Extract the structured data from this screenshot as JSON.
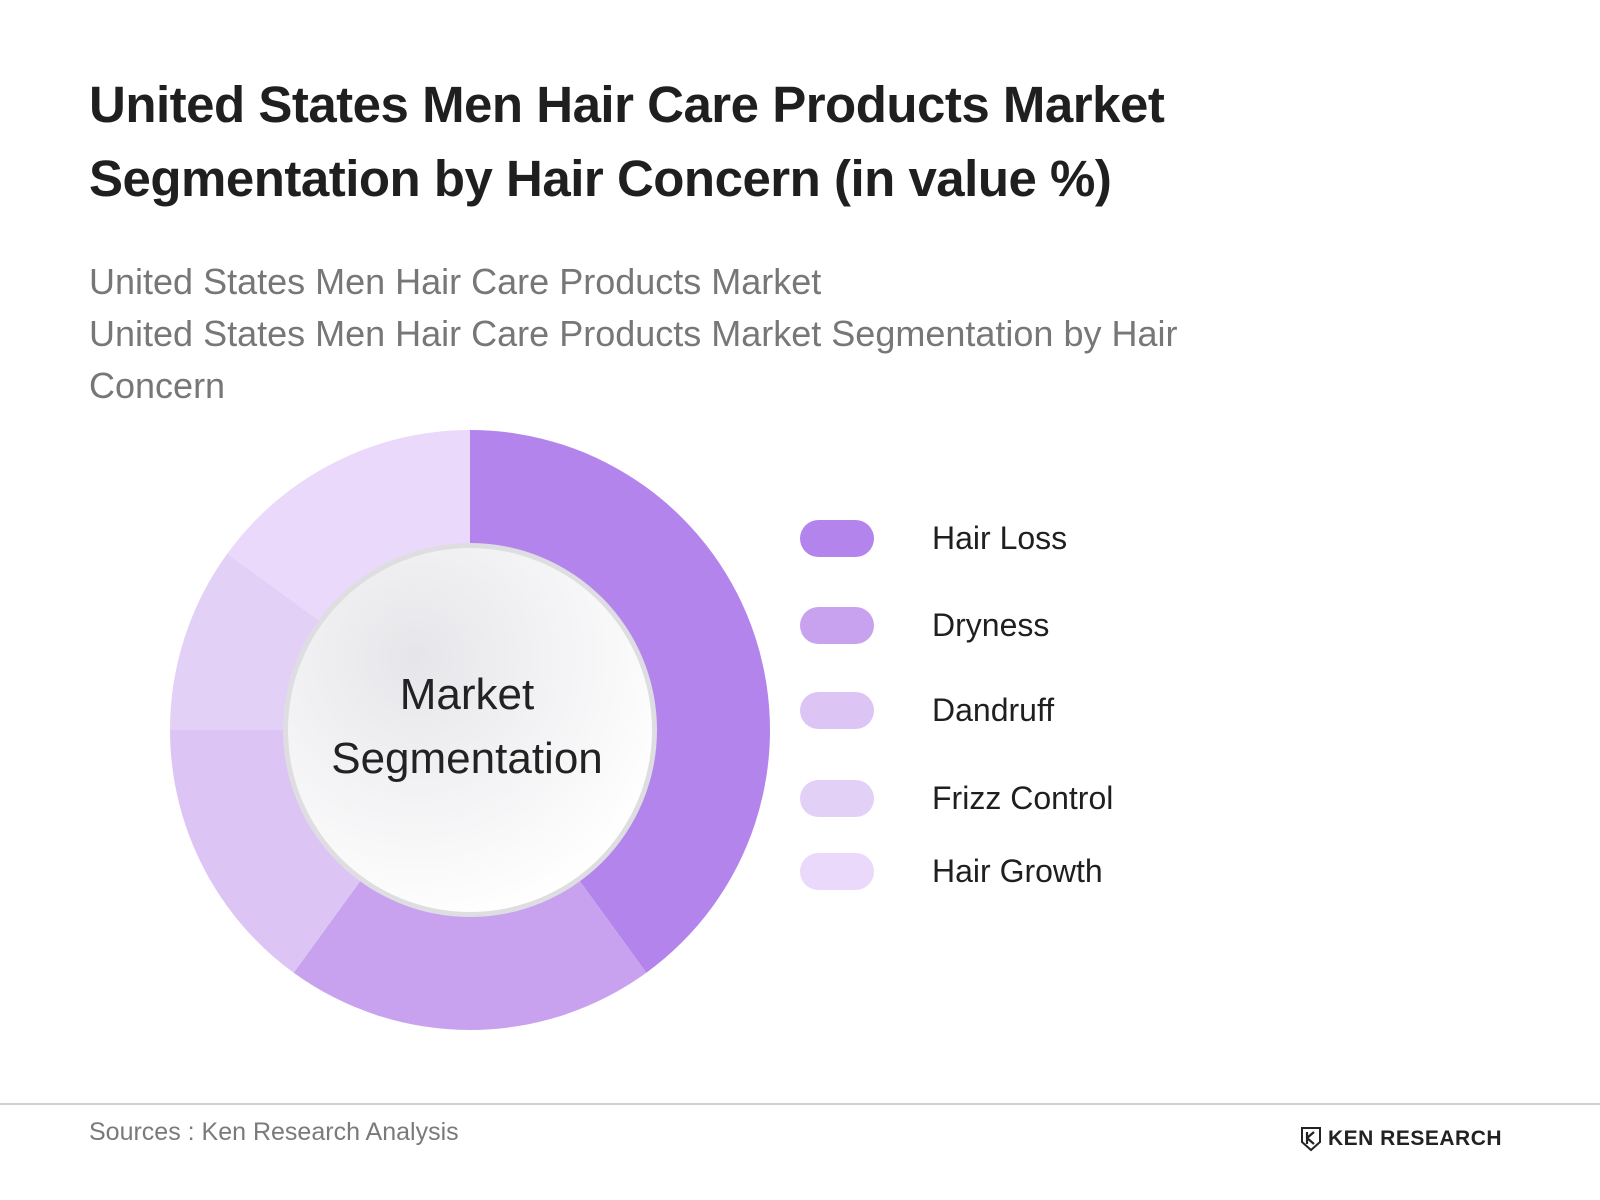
{
  "title": "United States Men Hair Care Products Market Segmentation by Hair Concern (in value %)",
  "subtitle_lines": [
    "United States Men Hair Care Products Market",
    "United States Men Hair Care Products Market Segmentation by Hair Concern"
  ],
  "center_label": "Market Segmentation",
  "source": "Sources : Ken Research Analysis",
  "logo_text": "KEN RESEARCH",
  "chart_data": {
    "type": "pie",
    "donut": true,
    "legend_position": "right",
    "categories": [
      "Hair Loss",
      "Dryness",
      "Dandruff",
      "Frizz Control",
      "Hair Growth"
    ],
    "values": [
      40,
      20,
      15,
      10,
      15
    ],
    "colors": [
      "#b385ec",
      "#c8a2ef",
      "#dcc4f5",
      "#e3d0f7",
      "#ead9fa"
    ]
  }
}
